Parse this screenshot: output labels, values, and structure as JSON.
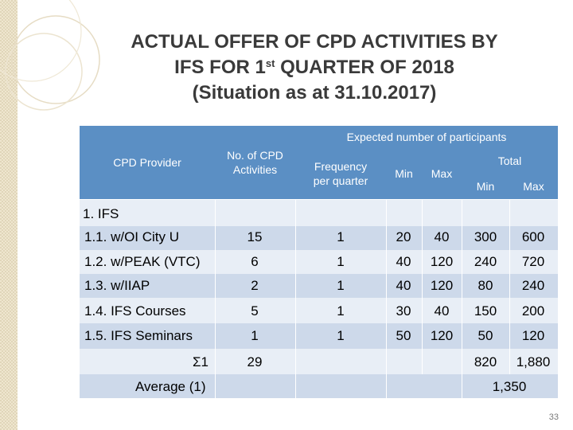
{
  "slide": {
    "title_line1": "ACTUAL OFFER OF CPD ACTIVITIES BY",
    "title_line2_pre": "IFS FOR 1",
    "title_line2_sup": "st",
    "title_line2_post": " QUARTER OF 2018",
    "title_line3": "(Situation as at 31.10.2017)",
    "page_number": "33"
  },
  "table": {
    "headers": {
      "provider": "CPD Provider",
      "no_of_activities": "No. of CPD Activities",
      "expected": "Expected number of participants",
      "frequency": "Frequency per quarter",
      "min": "Min",
      "max": "Max",
      "total": "Total",
      "total_min": "Min",
      "total_max": "Max"
    },
    "section_label": "1. IFS",
    "rows": [
      {
        "provider": "1.1. w/OI City U",
        "activities": "15",
        "frequency": "1",
        "min": "20",
        "max": "40",
        "total_min": "300",
        "total_max": "600"
      },
      {
        "provider": "1.2. w/PEAK (VTC)",
        "activities": "6",
        "frequency": "1",
        "min": "40",
        "max": "120",
        "total_min": "240",
        "total_max": "720"
      },
      {
        "provider": "1.3. w/IIAP",
        "activities": "2",
        "frequency": "1",
        "min": "40",
        "max": "120",
        "total_min": "80",
        "total_max": "240"
      },
      {
        "provider": "1.4. IFS Courses",
        "activities": "5",
        "frequency": "1",
        "min": "30",
        "max": "40",
        "total_min": "150",
        "total_max": "200"
      },
      {
        "provider": "1.5. IFS Seminars",
        "activities": "1",
        "frequency": "1",
        "min": "50",
        "max": "120",
        "total_min": "50",
        "total_max": "120"
      }
    ],
    "sum_row": {
      "label": "Σ1",
      "activities": "29",
      "total_min": "820",
      "total_max": "1,880"
    },
    "average_row": {
      "label": "Average (1)",
      "total": "1,350"
    }
  }
}
